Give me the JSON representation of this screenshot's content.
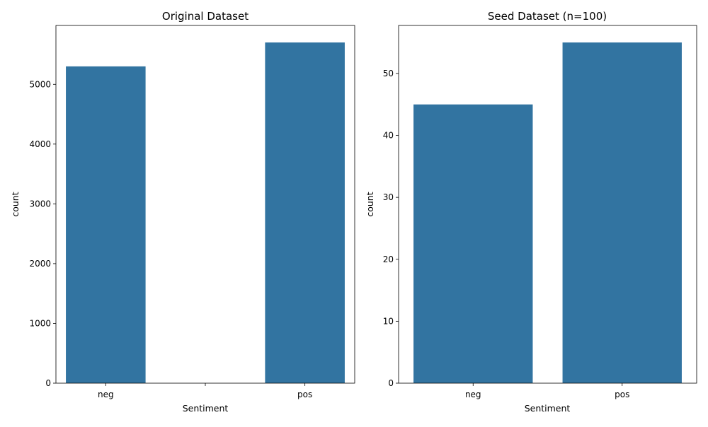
{
  "colors": {
    "bar": "#3274a1",
    "axis": "#000000",
    "background": "#ffffff"
  },
  "chart_data": [
    {
      "type": "bar",
      "title": "Original Dataset",
      "xlabel": "Sentiment",
      "ylabel": "count",
      "categories": [
        "neg",
        "",
        "pos"
      ],
      "values": [
        5300,
        0,
        5700
      ],
      "ylim": [
        0,
        5985
      ],
      "yticks": [
        0,
        1000,
        2000,
        3000,
        4000,
        5000
      ],
      "grid": false
    },
    {
      "type": "bar",
      "title": "Seed Dataset (n=100)",
      "xlabel": "Sentiment",
      "ylabel": "count",
      "categories": [
        "neg",
        "pos"
      ],
      "values": [
        45,
        55
      ],
      "ylim": [
        0,
        57.75
      ],
      "yticks": [
        0,
        10,
        20,
        30,
        40,
        50
      ],
      "grid": false
    }
  ]
}
